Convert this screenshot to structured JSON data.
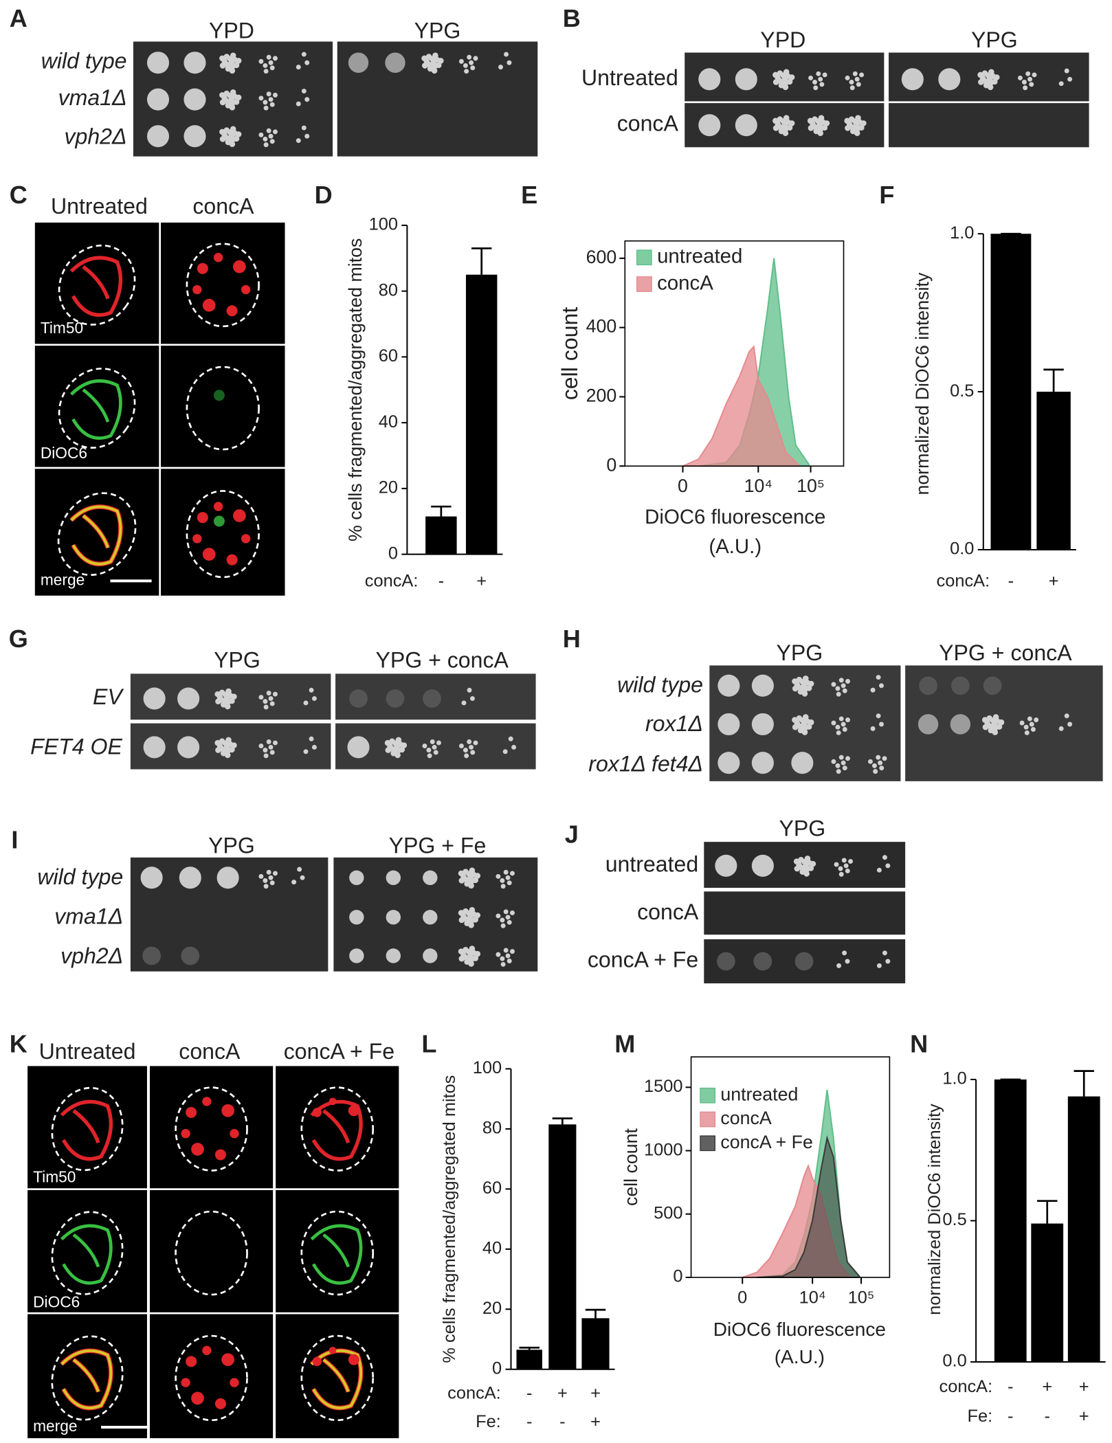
{
  "panels": {
    "A": {
      "label": "A",
      "columns": [
        "YPD",
        "YPG"
      ],
      "rows": [
        "wild type",
        "vma1Δ",
        "vph2Δ"
      ]
    },
    "B": {
      "label": "B",
      "columns": [
        "YPD",
        "YPG"
      ],
      "rows": [
        "Untreated",
        "concA"
      ]
    },
    "C": {
      "label": "C",
      "columns": [
        "Untreated",
        "concA"
      ],
      "channels": [
        "Tim50",
        "DiOC6",
        "merge"
      ]
    },
    "D": {
      "label": "D",
      "chart": {
        "type": "bar",
        "ylabel": "% cells fragmented/aggregated mitos",
        "ylim": [
          0,
          100
        ],
        "yticks": [
          0,
          20,
          40,
          60,
          80,
          100
        ],
        "rows": [
          {
            "name": "concA:",
            "labels": [
              "-",
              "+"
            ]
          }
        ],
        "values": [
          11.5,
          85
        ],
        "errors": [
          3,
          8
        ],
        "color": "#000000"
      }
    },
    "E": {
      "label": "E",
      "chart": {
        "type": "histogram",
        "ylabel": "cell count",
        "xlabel": "DiOC6 fluorescence",
        "xunit": "(A.U.)",
        "x_scale": "biexponential",
        "xlim": [
          -4600,
          425000
        ],
        "xticks": [
          0,
          {
            "value": 10000,
            "label": "10⁴"
          },
          {
            "value": 100000,
            "label": "10⁵"
          }
        ],
        "ylim": [
          0,
          650
        ],
        "yticks": [
          0,
          200,
          400,
          600
        ],
        "legend": "upper left",
        "series": [
          {
            "name": "untreated",
            "color": "#5fbf8a",
            "x": [
              540,
              2400,
              4400,
              6700,
              10000,
              15000,
              20000,
              27000,
              38000,
              52000,
              92000
            ],
            "values": [
              0,
              10,
              60,
              150,
              260,
              450,
              600,
              420,
              200,
              60,
              5
            ]
          },
          {
            "name": "concA",
            "color": "#e58a8f",
            "x": [
              0,
              540,
              1230,
              2400,
              4400,
              6700,
              8200,
              10000,
              15000,
              22500,
              33600,
              62000
            ],
            "values": [
              0,
              20,
              80,
              180,
              260,
              330,
              345,
              250,
              200,
              120,
              40,
              0
            ]
          }
        ]
      }
    },
    "F": {
      "label": "F",
      "chart": {
        "type": "bar",
        "ylabel": "normalized DiOC6 intensity",
        "ylim": [
          0,
          1.05
        ],
        "yticks": [
          {
            "value": 0,
            "label": "0.0"
          },
          {
            "value": 0.5,
            "label": "0.5"
          },
          {
            "value": 1,
            "label": "1.0"
          }
        ],
        "rows": [
          {
            "name": "concA:",
            "labels": [
              "-",
              "+"
            ]
          }
        ],
        "values": [
          1.0,
          0.5
        ],
        "errors": [
          0,
          0.07
        ],
        "color": "#000000"
      }
    },
    "G": {
      "label": "G",
      "columns": [
        "YPG",
        "YPG + concA"
      ],
      "rows": [
        "EV",
        "FET4 OE"
      ]
    },
    "H": {
      "label": "H",
      "columns": [
        "YPG",
        "YPG + concA"
      ],
      "rows": [
        "wild type",
        "rox1Δ",
        "rox1Δ fet4Δ"
      ]
    },
    "I": {
      "label": "I",
      "columns": [
        "YPG",
        "YPG + Fe"
      ],
      "rows": [
        "wild type",
        "vma1Δ",
        "vph2Δ"
      ]
    },
    "J": {
      "label": "J",
      "columns": [
        "YPG"
      ],
      "rows": [
        "untreated",
        "concA",
        "concA + Fe"
      ]
    },
    "K": {
      "label": "K",
      "columns": [
        "Untreated",
        "concA",
        "concA + Fe"
      ],
      "channels": [
        "Tim50",
        "DiOC6",
        "merge"
      ]
    },
    "L": {
      "label": "L",
      "chart": {
        "type": "bar",
        "ylabel": "% cells fragmented/aggregated mitos",
        "ylim": [
          0,
          100
        ],
        "yticks": [
          0,
          20,
          40,
          60,
          80,
          100
        ],
        "rows": [
          {
            "name": "concA:",
            "labels": [
              "-",
              "+",
              "+"
            ]
          },
          {
            "name": "Fe:",
            "labels": [
              "-",
              "-",
              "+"
            ]
          }
        ],
        "values": [
          6.5,
          81.5,
          17
        ],
        "errors": [
          0.7,
          2,
          2.8
        ],
        "color": "#000000"
      }
    },
    "M": {
      "label": "M",
      "chart": {
        "type": "histogram",
        "ylabel": "cell count",
        "xlabel": "DiOC6 fluorescence",
        "xunit": "(A.U.)",
        "x_scale": "biexponential",
        "xlim": [
          -4100,
          384000
        ],
        "xticks": [
          0,
          {
            "value": 10000,
            "label": "10⁴"
          },
          {
            "value": 100000,
            "label": "10⁵"
          }
        ],
        "ylim": [
          0,
          1740
        ],
        "yticks": [
          0,
          500,
          1000,
          1500
        ],
        "legend": "upper left",
        "series": [
          {
            "name": "untreated",
            "color": "#5fbf8a",
            "x": [
              540,
              2400,
              4400,
              6700,
              10000,
              15000,
              20000,
              27000,
              38000,
              52000,
              92000
            ],
            "values": [
              0,
              20,
              120,
              330,
              620,
              1100,
              1480,
              1100,
              450,
              120,
              10
            ]
          },
          {
            "name": "concA",
            "color": "#e58a8f",
            "x": [
              0,
              540,
              1230,
              2400,
              4400,
              6700,
              8200,
              10000,
              15000,
              22500,
              33600,
              62000
            ],
            "values": [
              0,
              40,
              150,
              350,
              560,
              800,
              880,
              780,
              650,
              380,
              120,
              0
            ]
          },
          {
            "name": "concA + Fe",
            "color": "#3a3a3a",
            "x": [
              540,
              2400,
              4400,
              6700,
              10000,
              15000,
              20000,
              27000,
              38000,
              52000,
              92000
            ],
            "values": [
              0,
              10,
              60,
              200,
              450,
              850,
              1100,
              950,
              450,
              120,
              8
            ]
          }
        ]
      }
    },
    "N": {
      "label": "N",
      "chart": {
        "type": "bar",
        "ylabel": "normalized DiOC6 intensity",
        "ylim": [
          0,
          1.08
        ],
        "yticks": [
          {
            "value": 0,
            "label": "0.0"
          },
          {
            "value": 0.5,
            "label": "0.5"
          },
          {
            "value": 1,
            "label": "1.0"
          }
        ],
        "rows": [
          {
            "name": "concA:",
            "labels": [
              "-",
              "+",
              "+"
            ]
          },
          {
            "name": "Fe:",
            "labels": [
              "-",
              "-",
              "+"
            ]
          }
        ],
        "values": [
          1.0,
          0.49,
          0.94
        ],
        "errors": [
          0,
          0.08,
          0.09
        ],
        "color": "#000000"
      }
    }
  }
}
